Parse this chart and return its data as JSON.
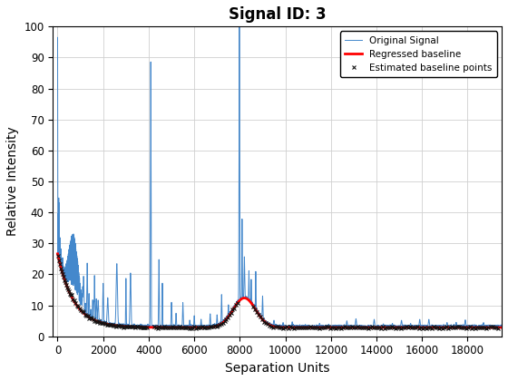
{
  "title": "Signal ID: 3",
  "xlabel": "Separation Units",
  "ylabel": "Relative Intensity",
  "xlim": [
    -200,
    19500
  ],
  "ylim": [
    0,
    100
  ],
  "signal_color": "#4488CC",
  "baseline_color": "#FF0000",
  "baseline_pts_color": "#111111",
  "legend_labels": [
    "Original Signal",
    "Regressed baseline",
    "Estimated baseline points"
  ],
  "baseline_linewidth": 2.0,
  "signal_linewidth": 0.7,
  "title_fontsize": 12,
  "label_fontsize": 10
}
